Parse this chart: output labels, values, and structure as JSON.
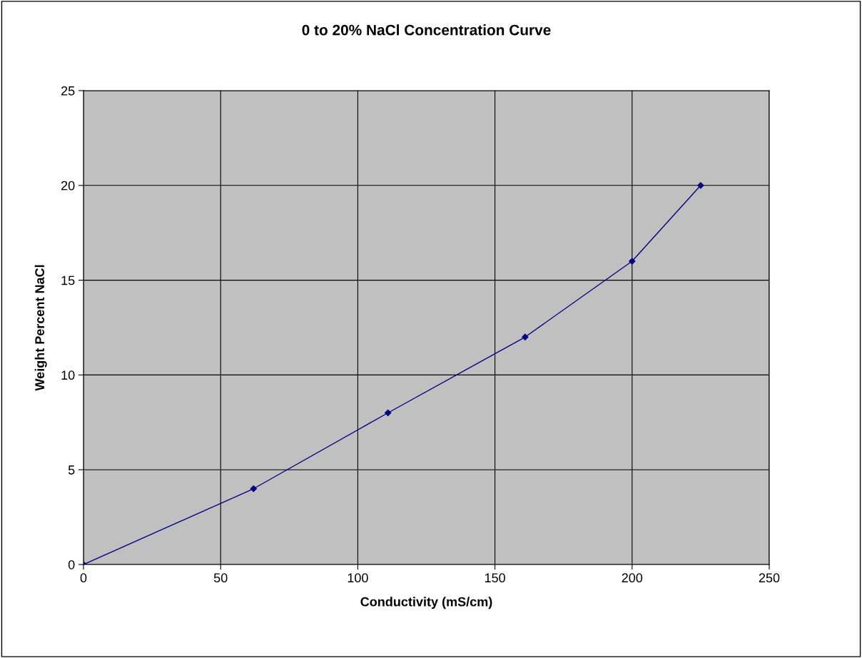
{
  "chart_data": {
    "type": "line",
    "title": "0 to 20% NaCl Concentration Curve",
    "xlabel": "Conductivity (mS/cm)",
    "ylabel": "Weight Percent NaCl",
    "x": [
      0,
      62,
      111,
      161,
      200,
      225
    ],
    "series": [
      {
        "color": "#000080",
        "values": [
          0,
          4,
          8,
          12,
          16,
          20
        ]
      }
    ],
    "xlim": [
      0,
      250
    ],
    "xticks": [
      0,
      50,
      100,
      150,
      200,
      250
    ],
    "ylim": [
      0,
      25
    ],
    "yticks": [
      0,
      5,
      10,
      15,
      20,
      25
    ],
    "grid": true,
    "marker": "diamond",
    "line_style": "solid"
  }
}
